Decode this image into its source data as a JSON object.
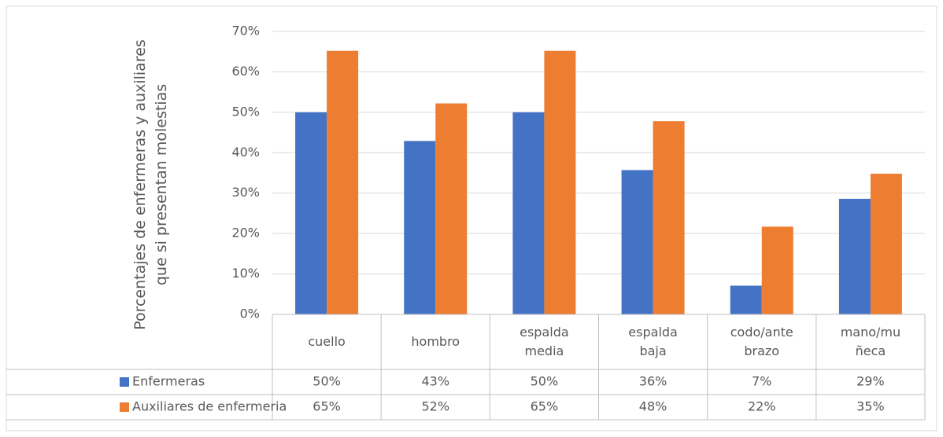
{
  "chart_data": {
    "type": "bar",
    "y_label": "Porcentajes de enfermeras y auxiliares que si presentan molestias",
    "categories": [
      "cuello",
      "hombro",
      "espalda media",
      "espalda baja",
      "codo/antebrazo",
      "mano/muñeca"
    ],
    "series": [
      {
        "name": "Enfermeras",
        "color": "#4472c4",
        "values": [
          50,
          42.9,
          50,
          35.7,
          7.1,
          28.6
        ],
        "value_labels": [
          "50%",
          "43%",
          "50%",
          "36%",
          "7%",
          "29%"
        ]
      },
      {
        "name": "Auxiliares de enfermeria",
        "color": "#ed7d31",
        "values": [
          65.2,
          52.2,
          65.2,
          47.8,
          21.7,
          34.8
        ],
        "value_labels": [
          "65%",
          "52%",
          "65%",
          "48%",
          "22%",
          "35%"
        ]
      }
    ],
    "ylim": [
      0,
      70
    ],
    "yticks": [
      {
        "value": 0,
        "label": "0%"
      },
      {
        "value": 10,
        "label": "10%"
      },
      {
        "value": 20,
        "label": "20%"
      },
      {
        "value": 30,
        "label": "30%"
      },
      {
        "value": 40,
        "label": "40%"
      },
      {
        "value": 50,
        "label": "50%"
      },
      {
        "value": 60,
        "label": "60%"
      },
      {
        "value": 70,
        "label": "70%"
      }
    ],
    "grid": true,
    "data_table": true
  }
}
